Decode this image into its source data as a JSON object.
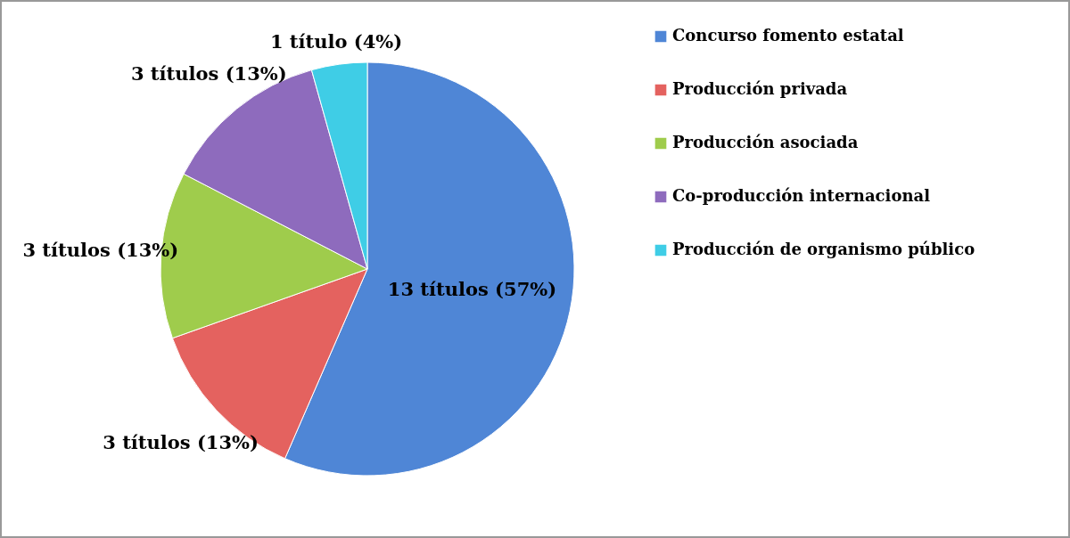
{
  "chart_data": {
    "type": "pie",
    "categories": [
      "Concurso fomento estatal",
      "Producción privada",
      "Producción asociada",
      "Co-producción internacional",
      "Producción de organismo público"
    ],
    "values": [
      13,
      3,
      3,
      3,
      1
    ],
    "colors": [
      "#4f86d6",
      "#e4625f",
      "#9fcc4c",
      "#8e6bbd",
      "#3fcde6"
    ],
    "value_labels": [
      "13 títulos (57%)",
      "3 títulos (13%)",
      "3 títulos (13%)",
      "3 títulos (13%)",
      "1 título (4%)"
    ],
    "legend": "right"
  }
}
